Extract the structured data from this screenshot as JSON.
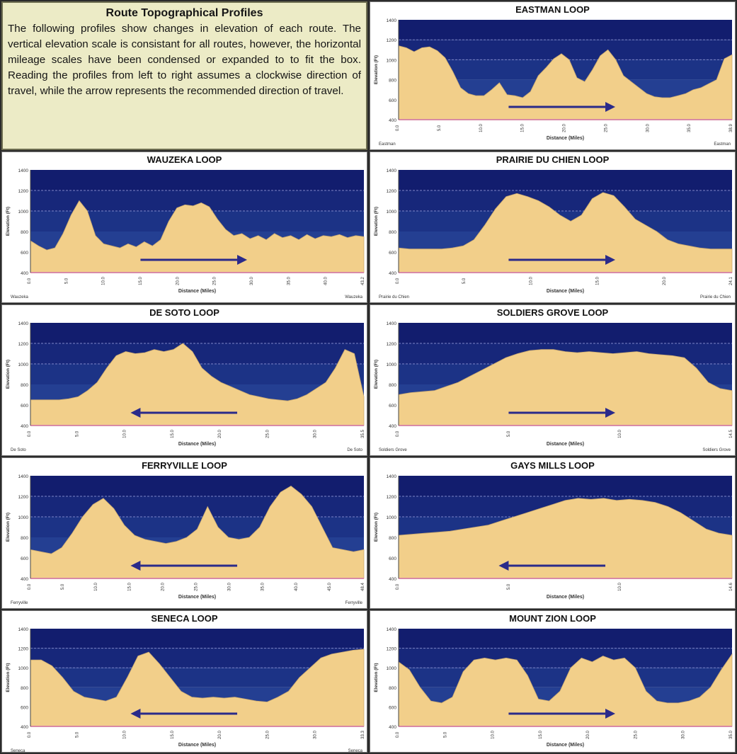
{
  "intro": {
    "title": "Route Topographical Profiles",
    "text": "The following profiles show changes in elevation of each route. The vertical elevation scale is consistant for all routes, however, the horizontal mileage scales have been condensed or expanded to to fit the box. Reading the profiles from left to right assumes a clockwise direction of travel, while the arrow represents the recommended direction of travel."
  },
  "colors": {
    "sky": "#1a2a7a",
    "ground": "#f2cf8a",
    "arrow": "#2a2a8a",
    "frame": "#2b2b2b"
  },
  "chart_data": [
    {
      "type": "area",
      "title": "EASTMAN LOOP",
      "ylabel": "Elevation (Ft)",
      "xlabel": "Distance (Miles)",
      "ylim": [
        400,
        1400
      ],
      "yticks": [
        "1400",
        "1200",
        "1000",
        "800",
        "600",
        "400"
      ],
      "xticks": [
        "0.0",
        "5.0",
        "10.0",
        "15.0",
        "20.0",
        "25.0",
        "30.0",
        "35.0",
        "38.9"
      ],
      "start_label": "Eastman",
      "end_label": "Eastman",
      "arrow": "right",
      "y": [
        1140,
        1120,
        1080,
        1120,
        1130,
        1090,
        1020,
        880,
        720,
        660,
        640,
        640,
        700,
        770,
        650,
        640,
        620,
        680,
        840,
        920,
        1010,
        1060,
        1000,
        820,
        780,
        900,
        1040,
        1100,
        1000,
        840,
        780,
        720,
        660,
        630,
        620,
        620,
        640,
        660,
        700,
        720,
        760,
        800,
        1010,
        1050
      ]
    },
    {
      "type": "area",
      "title": "WAUZEKA LOOP",
      "ylabel": "Elevation (Ft)",
      "xlabel": "Distance (Miles)",
      "ylim": [
        400,
        1400
      ],
      "yticks": [
        "1400",
        "1200",
        "1000",
        "800",
        "600",
        "400"
      ],
      "xticks": [
        "0.0",
        "5.0",
        "10.0",
        "15.0",
        "20.0",
        "25.0",
        "30.0",
        "35.0",
        "40.0",
        "43.2"
      ],
      "start_label": "Wauzeka",
      "end_label": "Wauzeka",
      "arrow": "right",
      "y": [
        710,
        660,
        620,
        640,
        780,
        960,
        1100,
        1000,
        760,
        680,
        660,
        640,
        680,
        650,
        700,
        660,
        720,
        900,
        1030,
        1060,
        1050,
        1080,
        1040,
        920,
        820,
        760,
        780,
        730,
        760,
        720,
        780,
        740,
        760,
        720,
        770,
        730,
        760,
        750,
        770,
        740,
        760,
        750
      ]
    },
    {
      "type": "area",
      "title": "PRAIRIE DU CHIEN LOOP",
      "ylabel": "Elevation (Ft)",
      "xlabel": "Distance (Miles)",
      "ylim": [
        400,
        1400
      ],
      "yticks": [
        "1400",
        "1200",
        "1000",
        "800",
        "600",
        "400"
      ],
      "xticks": [
        "0.0",
        "5.0",
        "10.0",
        "15.0",
        "20.0",
        "24.1"
      ],
      "start_label": "Prairie du Chien",
      "end_label": "Prairie du Chien",
      "arrow": "right",
      "y": [
        640,
        630,
        630,
        630,
        630,
        640,
        660,
        720,
        860,
        1020,
        1140,
        1170,
        1140,
        1100,
        1040,
        960,
        900,
        960,
        1120,
        1180,
        1150,
        1040,
        920,
        860,
        800,
        720,
        680,
        660,
        640,
        630,
        630,
        630
      ]
    },
    {
      "type": "area",
      "title": "DE SOTO LOOP",
      "ylabel": "Elevation (Ft)",
      "xlabel": "Distance (Miles)",
      "ylim": [
        400,
        1400
      ],
      "yticks": [
        "1400",
        "1200",
        "1000",
        "800",
        "600",
        "400"
      ],
      "xticks": [
        "0.0",
        "5.0",
        "10.0",
        "15.0",
        "20.0",
        "25.0",
        "30.0",
        "35.5"
      ],
      "start_label": "De Soto",
      "end_label": "De Soto",
      "arrow": "left",
      "y": [
        650,
        650,
        650,
        650,
        660,
        680,
        740,
        820,
        960,
        1080,
        1120,
        1100,
        1110,
        1140,
        1120,
        1140,
        1200,
        1120,
        960,
        880,
        820,
        780,
        740,
        700,
        680,
        660,
        650,
        640,
        660,
        700,
        760,
        820,
        960,
        1140,
        1100,
        680
      ]
    },
    {
      "type": "area",
      "title": "SOLDIERS GROVE LOOP",
      "ylabel": "Elevation (Ft)",
      "xlabel": "Distance (Miles)",
      "ylim": [
        400,
        1400
      ],
      "yticks": [
        "1400",
        "1200",
        "1000",
        "800",
        "600",
        "400"
      ],
      "xticks": [
        "0.0",
        "5.0",
        "10.0",
        "14.5"
      ],
      "start_label": "Soldiers Grove",
      "end_label": "Soldiers Grove",
      "arrow": "right",
      "y": [
        700,
        720,
        730,
        740,
        780,
        820,
        880,
        940,
        1000,
        1060,
        1100,
        1130,
        1140,
        1140,
        1120,
        1110,
        1120,
        1110,
        1100,
        1110,
        1120,
        1100,
        1090,
        1080,
        1060,
        960,
        820,
        760,
        740
      ]
    },
    {
      "type": "area",
      "title": "FERRYVILLE LOOP",
      "ylabel": "Elevation (Ft)",
      "xlabel": "Distance (Miles)",
      "ylim": [
        400,
        1400
      ],
      "yticks": [
        "1400",
        "1200",
        "1000",
        "800",
        "600",
        "400"
      ],
      "xticks": [
        "0.0",
        "5.0",
        "10.0",
        "15.0",
        "20.0",
        "25.0",
        "30.0",
        "35.0",
        "40.0",
        "45.0",
        "48.4"
      ],
      "start_label": "Ferryville",
      "end_label": "Ferryville",
      "arrow": "left",
      "y": [
        680,
        660,
        640,
        700,
        840,
        1000,
        1120,
        1180,
        1080,
        920,
        820,
        780,
        760,
        740,
        760,
        800,
        880,
        1100,
        900,
        800,
        780,
        800,
        900,
        1100,
        1240,
        1300,
        1220,
        1100,
        900,
        700,
        680,
        660,
        680
      ]
    },
    {
      "type": "area",
      "title": "GAYS MILLS LOOP",
      "ylabel": "Elevation (Ft)",
      "xlabel": "Distance (Miles)",
      "ylim": [
        400,
        1400
      ],
      "yticks": [
        "1400",
        "1200",
        "1000",
        "800",
        "600",
        "400"
      ],
      "xticks": [
        "0.0",
        "5.0",
        "10.0",
        "14.6"
      ],
      "start_label": "",
      "end_label": "",
      "arrow": "left",
      "y": [
        820,
        830,
        840,
        850,
        860,
        880,
        900,
        920,
        960,
        1000,
        1040,
        1080,
        1120,
        1160,
        1180,
        1170,
        1180,
        1160,
        1170,
        1160,
        1140,
        1100,
        1040,
        960,
        880,
        840,
        820
      ]
    },
    {
      "type": "area",
      "title": "SENECA LOOP",
      "ylabel": "Elevation (Ft)",
      "xlabel": "Distance (Miles)",
      "ylim": [
        400,
        1400
      ],
      "yticks": [
        "1400",
        "1200",
        "1000",
        "800",
        "600",
        "400"
      ],
      "xticks": [
        "0.0",
        "5.0",
        "10.0",
        "15.0",
        "20.0",
        "25.0",
        "30.0",
        "33.3"
      ],
      "start_label": "Seneca",
      "end_label": "Seneca",
      "arrow": "left",
      "y": [
        1080,
        1080,
        1020,
        900,
        760,
        700,
        680,
        660,
        700,
        900,
        1120,
        1160,
        1040,
        900,
        760,
        700,
        690,
        700,
        690,
        700,
        680,
        660,
        650,
        700,
        760,
        900,
        1000,
        1100,
        1140,
        1160,
        1180,
        1190
      ]
    },
    {
      "type": "area",
      "title": "MOUNT ZION LOOP",
      "ylabel": "Elevation (Ft)",
      "xlabel": "Distance (Miles)",
      "ylim": [
        400,
        1400
      ],
      "yticks": [
        "1400",
        "1200",
        "1000",
        "800",
        "600",
        "400"
      ],
      "xticks": [
        "0.0",
        "5.0",
        "10.0",
        "15.0",
        "20.0",
        "25.0",
        "30.0",
        "35.0"
      ],
      "start_label": "",
      "end_label": "",
      "arrow": "right",
      "y": [
        1060,
        980,
        800,
        660,
        640,
        700,
        960,
        1080,
        1100,
        1080,
        1100,
        1080,
        920,
        680,
        660,
        760,
        1000,
        1100,
        1060,
        1120,
        1080,
        1100,
        1000,
        760,
        660,
        640,
        640,
        660,
        700,
        800,
        980,
        1140
      ]
    }
  ]
}
